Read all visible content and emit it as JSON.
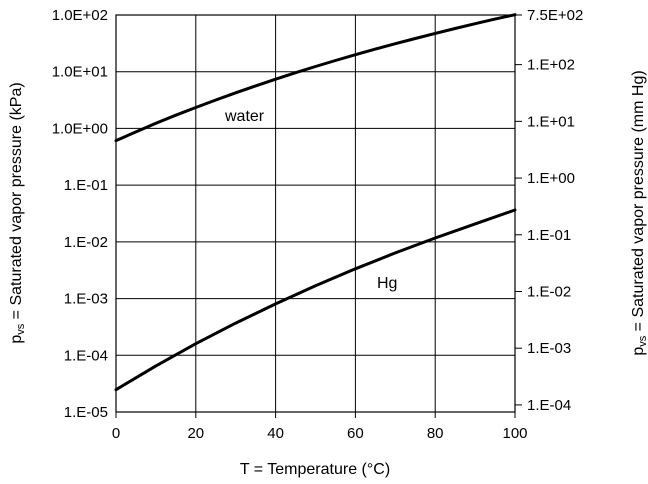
{
  "chart_data": {
    "type": "line",
    "xlabel": "T = Temperature (°C)",
    "ylabel": {
      "main": "p",
      "sub": "vs",
      "rest": " = Saturated vapor pressure (kPa)"
    },
    "y2label": {
      "main": "p",
      "sub": "vs",
      "rest": " = Saturated vapor pressure (mm Hg)"
    },
    "x_range": [
      0,
      100
    ],
    "y_range_kpa": [
      1e-05,
      100
    ],
    "y_scale": "log",
    "grid": true,
    "x_ticks": [
      "0",
      "20",
      "40",
      "60",
      "80",
      "100"
    ],
    "y_ticks": [
      "1.E-05",
      "1.E-04",
      "1.E-03",
      "1.E-02",
      "1.E-01",
      "1.0E+00",
      "1.0E+01",
      "1.0E+02"
    ],
    "y2_ticks": [
      {
        "label": "1.E-04",
        "value": 0.0001
      },
      {
        "label": "1.E-03",
        "value": 0.001
      },
      {
        "label": "1.E-02",
        "value": 0.01
      },
      {
        "label": "1.E-01",
        "value": 0.1
      },
      {
        "label": "1.E+00",
        "value": 1
      },
      {
        "label": "1.E+01",
        "value": 10
      },
      {
        "label": "1.E+02",
        "value": 100
      },
      {
        "label": "7.5E+02",
        "value": 750
      }
    ],
    "series": [
      {
        "name": "water",
        "x": [
          0,
          5,
          10,
          15,
          20,
          25,
          30,
          35,
          40,
          45,
          50,
          55,
          60,
          65,
          70,
          75,
          80,
          85,
          90,
          95,
          100
        ],
        "y": [
          0.61,
          0.87,
          1.23,
          1.71,
          2.34,
          3.17,
          4.25,
          5.63,
          7.38,
          9.59,
          12.35,
          15.76,
          19.95,
          25.03,
          31.19,
          38.58,
          47.41,
          57.87,
          70.18,
          84.61,
          101.33
        ]
      },
      {
        "name": "Hg",
        "x": [
          0,
          10,
          20,
          30,
          40,
          50,
          60,
          70,
          80,
          90,
          100
        ],
        "y": [
          2.47e-05,
          6.5e-05,
          0.00016,
          0.000369,
          0.000807,
          0.00168,
          0.00335,
          0.00639,
          0.0117,
          0.0207,
          0.0365
        ]
      }
    ]
  }
}
